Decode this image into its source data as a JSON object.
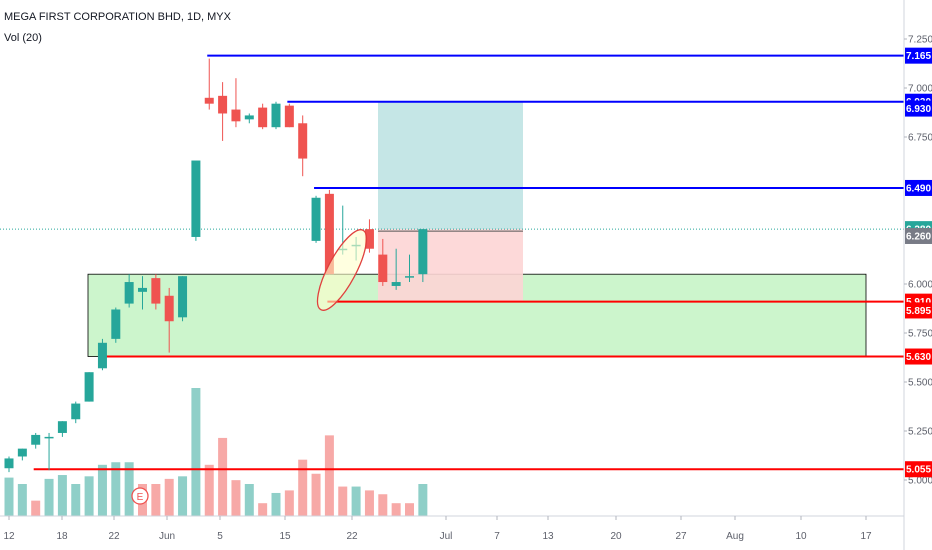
{
  "header": {
    "symbol": "MEGA FIRST CORPORATION BHD, 1D, MYX",
    "volume_label": "Vol (20)"
  },
  "colors": {
    "up": "#26a69a",
    "down": "#ef5350",
    "vol_up": "#8fcfc8",
    "vol_down": "#f7a9a7",
    "level_blue": "#0000ff",
    "level_red": "#ff0000",
    "green_zone": "#ccf5cc",
    "target_zone": "#bfe3e3",
    "stop_zone": "#fdd5d5",
    "axis_text": "#5d606b",
    "current_price_line": "#26a69a",
    "earnings": "#ef5350",
    "ellipse": "#e0403d",
    "ellipse_fill": "#ffffcc",
    "stop_tag": "#787b86"
  },
  "chart_data": {
    "type": "candlestick",
    "title": "MEGA FIRST CORPORATION BHD, 1D, MYX",
    "x_tick_labels": [
      "12",
      "18",
      "22",
      "Jun",
      "5",
      "15",
      "22",
      "Jul",
      "7",
      "13",
      "20",
      "27",
      "Aug",
      "10",
      "17"
    ],
    "y_tick_labels": [
      "7.250",
      "7.000",
      "6.750",
      "6.000",
      "5.750",
      "5.500",
      "5.250",
      "5.000"
    ],
    "ylim": [
      4.97,
      7.28
    ],
    "candles": [
      {
        "o": 5.06,
        "h": 5.12,
        "l": 5.04,
        "c": 5.11
      },
      {
        "o": 5.12,
        "h": 5.16,
        "l": 5.1,
        "c": 5.16
      },
      {
        "o": 5.18,
        "h": 5.24,
        "l": 5.16,
        "c": 5.23
      },
      {
        "o": 5.22,
        "h": 5.24,
        "l": 5.05,
        "c": 5.22
      },
      {
        "o": 5.24,
        "h": 5.3,
        "l": 5.22,
        "c": 5.3
      },
      {
        "o": 5.31,
        "h": 5.4,
        "l": 5.29,
        "c": 5.39
      },
      {
        "o": 5.4,
        "h": 5.55,
        "l": 5.4,
        "c": 5.55
      },
      {
        "o": 5.57,
        "h": 5.72,
        "l": 5.56,
        "c": 5.7
      },
      {
        "o": 5.72,
        "h": 5.88,
        "l": 5.7,
        "c": 5.87
      },
      {
        "o": 5.9,
        "h": 6.05,
        "l": 5.88,
        "c": 6.01
      },
      {
        "o": 5.96,
        "h": 6.04,
        "l": 5.87,
        "c": 5.98
      },
      {
        "o": 6.03,
        "h": 6.05,
        "l": 5.87,
        "c": 5.9
      },
      {
        "o": 5.94,
        "h": 5.98,
        "l": 5.65,
        "c": 5.81
      },
      {
        "o": 5.83,
        "h": 6.04,
        "l": 5.81,
        "c": 6.04
      },
      {
        "o": 6.24,
        "h": 6.62,
        "l": 6.22,
        "c": 6.63
      },
      {
        "o": 6.95,
        "h": 7.15,
        "l": 6.89,
        "c": 6.92
      },
      {
        "o": 6.96,
        "h": 7.03,
        "l": 6.73,
        "c": 6.87
      },
      {
        "o": 6.89,
        "h": 7.05,
        "l": 6.8,
        "c": 6.83
      },
      {
        "o": 6.84,
        "h": 6.87,
        "l": 6.82,
        "c": 6.86
      },
      {
        "o": 6.9,
        "h": 6.92,
        "l": 6.79,
        "c": 6.8
      },
      {
        "o": 6.8,
        "h": 6.93,
        "l": 6.79,
        "c": 6.92
      },
      {
        "o": 6.91,
        "h": 6.92,
        "l": 6.8,
        "c": 6.8
      },
      {
        "o": 6.82,
        "h": 6.86,
        "l": 6.55,
        "c": 6.64
      },
      {
        "o": 6.22,
        "h": 6.45,
        "l": 6.21,
        "c": 6.44
      },
      {
        "o": 6.46,
        "h": 6.48,
        "l": 6.05,
        "c": 6.05
      },
      {
        "o": 6.18,
        "h": 6.4,
        "l": 6.15,
        "c": 6.18
      },
      {
        "o": 6.2,
        "h": 6.24,
        "l": 6.12,
        "c": 6.2
      },
      {
        "o": 6.28,
        "h": 6.33,
        "l": 6.16,
        "c": 6.18
      },
      {
        "o": 6.15,
        "h": 6.23,
        "l": 5.99,
        "c": 6.01
      },
      {
        "o": 5.99,
        "h": 6.18,
        "l": 5.97,
        "c": 6.01
      },
      {
        "o": 6.04,
        "h": 6.15,
        "l": 6.01,
        "c": 6.04
      },
      {
        "o": 6.05,
        "h": 6.28,
        "l": 6.01,
        "c": 6.28
      }
    ],
    "volume": [
      {
        "v": 0.3,
        "d": "up"
      },
      {
        "v": 0.25,
        "d": "up"
      },
      {
        "v": 0.12,
        "d": "down"
      },
      {
        "v": 0.29,
        "d": "up"
      },
      {
        "v": 0.32,
        "d": "up"
      },
      {
        "v": 0.25,
        "d": "up"
      },
      {
        "v": 0.31,
        "d": "up"
      },
      {
        "v": 0.4,
        "d": "up"
      },
      {
        "v": 0.42,
        "d": "up"
      },
      {
        "v": 0.42,
        "d": "up"
      },
      {
        "v": 0.25,
        "d": "down"
      },
      {
        "v": 0.25,
        "d": "down"
      },
      {
        "v": 0.29,
        "d": "down"
      },
      {
        "v": 0.31,
        "d": "up"
      },
      {
        "v": 1.0,
        "d": "up"
      },
      {
        "v": 0.4,
        "d": "down"
      },
      {
        "v": 0.61,
        "d": "down"
      },
      {
        "v": 0.28,
        "d": "down"
      },
      {
        "v": 0.25,
        "d": "up"
      },
      {
        "v": 0.1,
        "d": "down"
      },
      {
        "v": 0.18,
        "d": "up"
      },
      {
        "v": 0.2,
        "d": "down"
      },
      {
        "v": 0.44,
        "d": "down"
      },
      {
        "v": 0.33,
        "d": "down"
      },
      {
        "v": 0.63,
        "d": "down"
      },
      {
        "v": 0.23,
        "d": "down"
      },
      {
        "v": 0.23,
        "d": "up"
      },
      {
        "v": 0.2,
        "d": "down"
      },
      {
        "v": 0.17,
        "d": "down"
      },
      {
        "v": 0.1,
        "d": "down"
      },
      {
        "v": 0.1,
        "d": "down"
      },
      {
        "v": 0.25,
        "d": "up"
      }
    ],
    "price_tags": [
      {
        "label": "7.165",
        "value": 7.165,
        "color": "#0000ff"
      },
      {
        "label": "6.930",
        "value": 6.93,
        "color": "#0000ff"
      },
      {
        "label": "6.930",
        "value": 6.895,
        "color": "#0000ff"
      },
      {
        "label": "6.490",
        "value": 6.49,
        "color": "#0000ff"
      },
      {
        "label": "6.280",
        "value": 6.28,
        "color": "#26a69a"
      },
      {
        "label": "6.260",
        "value": 6.245,
        "color": "#787b86"
      },
      {
        "label": "5.910",
        "value": 5.91,
        "color": "#ff0000"
      },
      {
        "label": "5.895",
        "value": 5.865,
        "color": "#ff0000"
      },
      {
        "label": "5.630",
        "value": 5.63,
        "color": "#ff0000"
      },
      {
        "label": "5.055",
        "value": 5.055,
        "color": "#ff0000"
      }
    ],
    "levels": [
      {
        "value": 7.165,
        "from_index": 15,
        "color": "blue"
      },
      {
        "value": 6.93,
        "from_index": 21,
        "color": "blue"
      },
      {
        "value": 6.49,
        "from_index": 23,
        "color": "blue"
      },
      {
        "value": 5.91,
        "from_index": 24,
        "color": "red"
      },
      {
        "value": 5.63,
        "from_index": 7,
        "color": "red"
      },
      {
        "value": 5.055,
        "from_index": 2,
        "color": "red"
      }
    ],
    "support_zone": {
      "low": 5.63,
      "high": 6.05
    },
    "position": {
      "entry": 6.28,
      "target": 6.93,
      "stop": 5.91
    },
    "earnings_marker": "E"
  }
}
